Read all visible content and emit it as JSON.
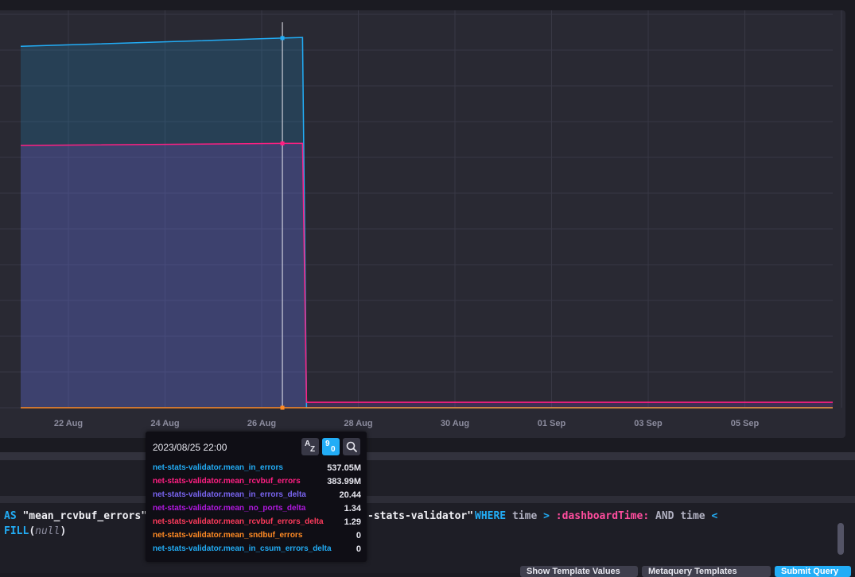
{
  "chart_data": {
    "type": "area",
    "x_ticks": [
      "22 Aug",
      "24 Aug",
      "26 Aug",
      "28 Aug",
      "30 Aug",
      "01 Sep",
      "03 Sep",
      "05 Sep"
    ],
    "series": [
      {
        "name": "net-stats-validator.mean_in_errors",
        "color": "#22adf6",
        "points": [
          [
            "2023-08-20",
            525.0
          ],
          [
            "2023-08-25 22:00",
            537.05
          ],
          [
            "2023-08-26 08:00",
            538.0
          ],
          [
            "2023-08-26 10:00",
            0.0
          ],
          [
            "2023-09-06 20:00",
            0.0
          ]
        ]
      },
      {
        "name": "net-stats-validator.mean_rcvbuf_errors",
        "color": "#ff1f82",
        "points": [
          [
            "2023-08-20",
            381.0
          ],
          [
            "2023-08-25 22:00",
            383.99
          ],
          [
            "2023-08-26 08:00",
            384.0
          ],
          [
            "2023-08-26 10:00",
            8.0
          ],
          [
            "2023-09-06 20:00",
            8.0
          ]
        ]
      },
      {
        "name": "net-stats-validator.mean_sndbuf_errors",
        "color": "#ff8a24",
        "points": [
          [
            "2023-08-20",
            0.0
          ],
          [
            "2023-09-06 20:00",
            0.0
          ]
        ]
      }
    ],
    "y_max": 560,
    "grid": true
  },
  "tooltip": {
    "time": "2023/08/25 22:00",
    "sort_alpha_label": "A",
    "sort_alpha_sub": "Z",
    "sort_num_label": "9",
    "sort_num_sub": "0",
    "rows": [
      {
        "name": "net-stats-validator.mean_in_errors",
        "value": "537.05M",
        "color": "#22adf6"
      },
      {
        "name": "net-stats-validator.mean_rcvbuf_errors",
        "value": "383.99M",
        "color": "#ff1f82"
      },
      {
        "name": "net-stats-validator.mean_in_errors_delta",
        "value": "20.44",
        "color": "#7a65f2"
      },
      {
        "name": "net-stats-validator.mean_no_ports_delta",
        "value": "1.34",
        "color": "#b118e0"
      },
      {
        "name": "net-stats-validator.mean_rcvbuf_errors_delta",
        "value": "1.29",
        "color": "#ff3b5c"
      },
      {
        "name": "net-stats-validator.mean_sndbuf_errors",
        "value": "0",
        "color": "#ff8a24"
      },
      {
        "name": "net-stats-validator.mean_in_csum_errors_delta",
        "value": "0",
        "color": "#22adf6"
      }
    ]
  },
  "query": {
    "line1": {
      "as_kw": "AS",
      "alias": " \"mean_rcvbuf_errors\"",
      "measurement_tail": "-stats-validator\"",
      "where_kw": "WHERE",
      "time1": "time",
      "gt": ">",
      "dashboard_time": ":dashboardTime:",
      "and_kw": "AND",
      "time2": "time",
      "lt": "<"
    },
    "line2": {
      "fill_kw": "FILL",
      "open": "(",
      "null_val": "null",
      "close": ")"
    }
  },
  "buttons": {
    "show_template_values": "Show Template Values",
    "metaquery_templates": "Metaquery Templates",
    "submit_query": "Submit Query"
  }
}
